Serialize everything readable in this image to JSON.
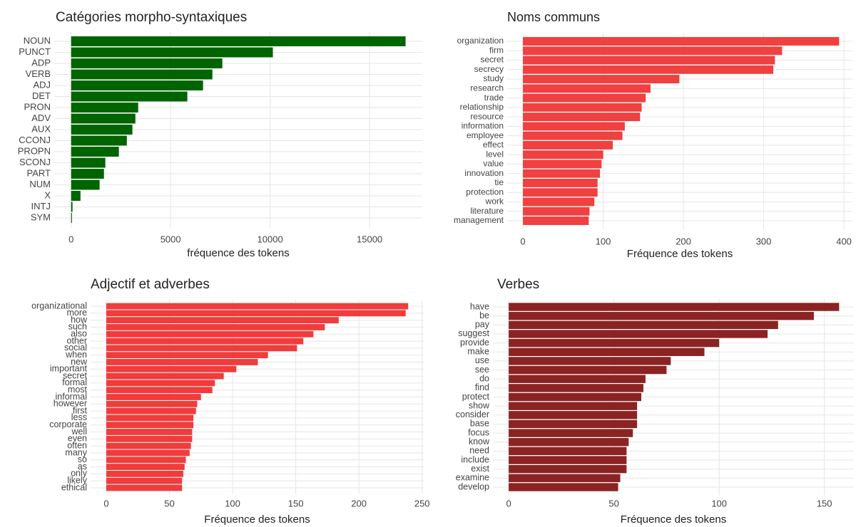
{
  "chart_data": [
    {
      "type": "bar",
      "orientation": "horizontal",
      "title": "Catégories morpho-syntaxiques",
      "x_label": "fréquence des tokens",
      "categories": [
        "NOUN",
        "PUNCT",
        "ADP",
        "VERB",
        "ADJ",
        "DET",
        "PRON",
        "ADV",
        "AUX",
        "CCONJ",
        "PROPN",
        "SCONJ",
        "PART",
        "NUM",
        "X",
        "INTJ",
        "SYM"
      ],
      "values": [
        16810,
        10140,
        7600,
        7100,
        6630,
        5840,
        3370,
        3230,
        3080,
        2800,
        2400,
        1720,
        1650,
        1430,
        470,
        70,
        40
      ],
      "color": "#006400",
      "xlim": [
        -850,
        17650
      ],
      "xticks": [
        0,
        5000,
        10000,
        15000
      ],
      "grid": true
    },
    {
      "type": "bar",
      "orientation": "horizontal",
      "title": "Noms communs",
      "x_label": "Fréquence des tokens",
      "categories": [
        "organization",
        "firm",
        "secret",
        "secrecy",
        "study",
        "research",
        "trade",
        "relationship",
        "resource",
        "information",
        "employee",
        "effect",
        "level",
        "value",
        "innovation",
        "tie",
        "protection",
        "work",
        "literature",
        "management"
      ],
      "values": [
        394,
        323,
        314,
        312,
        195,
        159,
        153,
        148,
        146,
        127,
        124,
        112,
        100,
        98,
        96,
        93,
        93,
        89,
        83,
        82
      ],
      "color": "#f04040",
      "xlim": [
        -19.6,
        410.6
      ],
      "xticks": [
        0,
        100,
        200,
        300,
        400
      ],
      "grid": true
    },
    {
      "type": "bar",
      "orientation": "horizontal",
      "title": "Adjectif et adverbes",
      "x_label": "Fréquence des tokens",
      "categories": [
        "organizational",
        "more",
        "how",
        "such",
        "also",
        "other",
        "social",
        "when",
        "new",
        "important",
        "secret",
        "formal",
        "most",
        "informal",
        "however",
        "first",
        "less",
        "corporate",
        "well",
        "even",
        "often",
        "many",
        "so",
        "as",
        "only",
        "likely",
        "ethical"
      ],
      "values": [
        239,
        237,
        184,
        173,
        164,
        156,
        151,
        128,
        120,
        103,
        93,
        86,
        84,
        75,
        72,
        71,
        69,
        69,
        68,
        68,
        67,
        66,
        63,
        62,
        61,
        60,
        60
      ],
      "color": "#f03c3c",
      "xlim": [
        -12.4,
        251.3
      ],
      "xticks": [
        0,
        50,
        100,
        150,
        200,
        250
      ],
      "grid": true
    },
    {
      "type": "bar",
      "orientation": "horizontal",
      "title": "Verbes",
      "x_label": "Fréquence des tokens",
      "categories": [
        "have",
        "be",
        "pay",
        "suggest",
        "provide",
        "make",
        "use",
        "see",
        "do",
        "find",
        "protect",
        "show",
        "consider",
        "base",
        "focus",
        "know",
        "need",
        "include",
        "exist",
        "examine",
        "develop"
      ],
      "values": [
        157,
        145,
        128,
        123,
        100,
        93,
        77,
        75,
        65,
        64,
        63,
        61,
        61,
        61,
        59,
        57,
        56,
        56,
        56,
        53,
        52
      ],
      "color": "#8b2323",
      "xlim": [
        -7.5,
        164
      ],
      "xticks": [
        0,
        50,
        100,
        150
      ],
      "grid": true
    }
  ]
}
